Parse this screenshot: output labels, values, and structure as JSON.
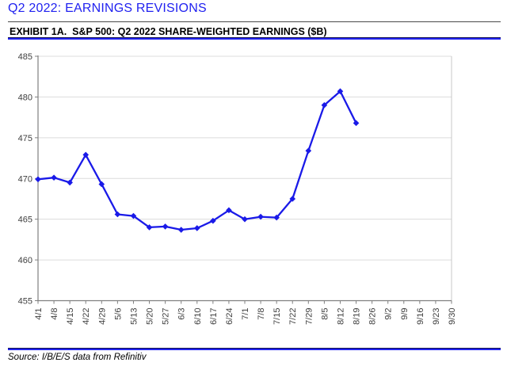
{
  "page": {
    "title": "Q2 2022: EARNINGS REVISIONS",
    "exhibit_title": "EXHIBIT 1A.  S&P 500: Q2 2022 SHARE-WEIGHTED EARNINGS ($B)",
    "source": "Source: I/B/E/S data from Refinitiv"
  },
  "colors": {
    "accent_blue": "#2122f0",
    "rule_dark": "#10104d",
    "line": "#1a1ae8",
    "grid": "#dcdcdc",
    "axis": "#808080",
    "border": "#c8c8c8",
    "tick_text": "#3f3f3f"
  },
  "chart_data": {
    "type": "line",
    "title": "S&P 500: Q2 2022 Share-Weighted Earnings ($B)",
    "x_labels": [
      "4/1",
      "4/8",
      "4/15",
      "4/22",
      "4/29",
      "5/6",
      "5/13",
      "5/20",
      "5/27",
      "6/3",
      "6/10",
      "6/17",
      "6/24",
      "7/1",
      "7/8",
      "7/15",
      "7/22",
      "7/29",
      "8/5",
      "8/12",
      "8/19",
      "8/26",
      "9/2",
      "9/9",
      "9/16",
      "9/23",
      "9/30"
    ],
    "series": [
      {
        "name": "Q2 2022 share-weighted earnings",
        "x": [
          "4/1",
          "4/8",
          "4/15",
          "4/22",
          "4/29",
          "5/6",
          "5/13",
          "5/20",
          "5/27",
          "6/3",
          "6/10",
          "6/17",
          "6/24",
          "7/1",
          "7/8",
          "7/15",
          "7/22",
          "7/29",
          "8/5",
          "8/12",
          "8/19"
        ],
        "values": [
          469.9,
          470.1,
          469.5,
          472.9,
          469.3,
          465.6,
          465.4,
          464.0,
          464.1,
          463.7,
          463.9,
          464.8,
          466.1,
          465.0,
          465.3,
          465.2,
          467.5,
          473.4,
          479.0,
          480.7,
          476.8
        ]
      }
    ],
    "ylim": [
      455,
      485
    ],
    "ytick_step": 5,
    "grid": true,
    "legend": "none",
    "marker": "diamond",
    "x_label_rotation": -90
  }
}
